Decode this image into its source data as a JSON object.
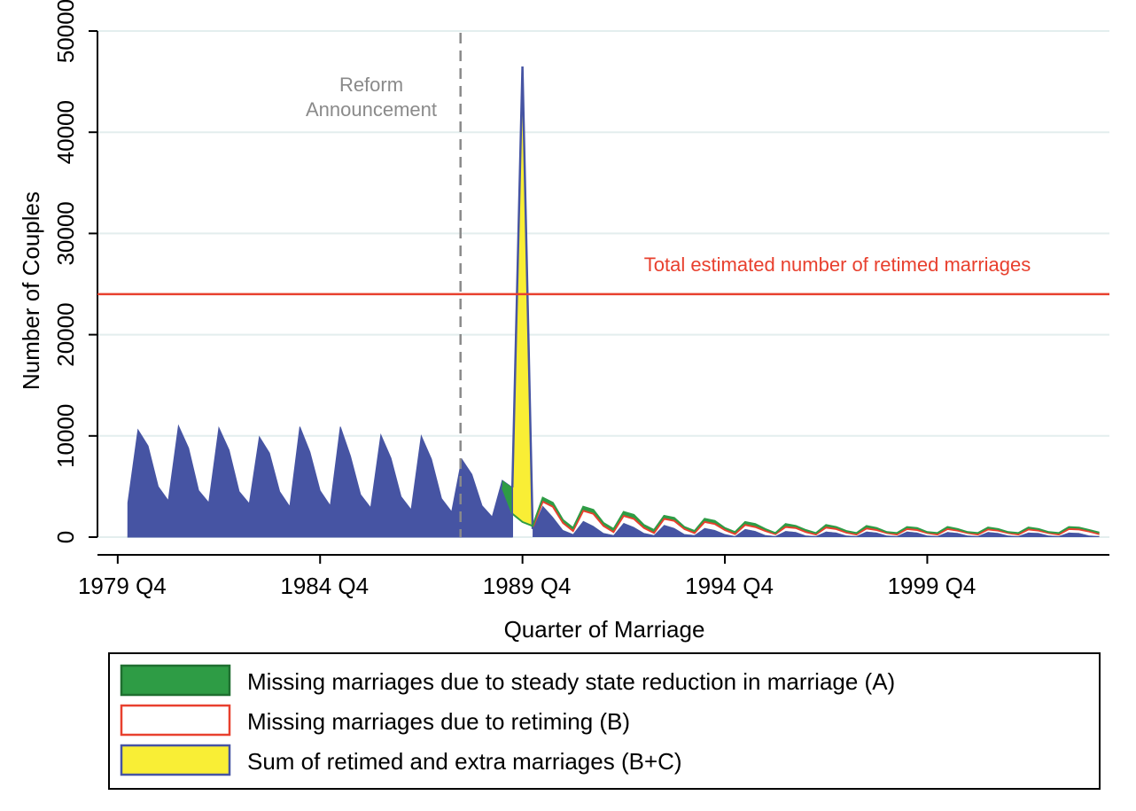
{
  "chart_data": {
    "type": "area",
    "xlabel": "Quarter of Marriage",
    "ylabel": "Number of Couples",
    "x_range": [
      "1979 Q2",
      "2004 Q2"
    ],
    "ylim": [
      0,
      50000
    ],
    "x_ticks": [
      "1979 Q4",
      "1984 Q4",
      "1989 Q4",
      "1994 Q4",
      "1999 Q4"
    ],
    "y_ticks": [
      "0",
      "10000",
      "20000",
      "30000",
      "40000",
      "50000"
    ],
    "grid": true,
    "colors": {
      "observed": "#4654a3",
      "missing_steady_state": "#2e9c45",
      "missing_retiming": "#e8402e",
      "retimed_extra": "#f9ee35",
      "reference_line": "#e8402e",
      "announcement_line": "#8a8a8a",
      "grid": "#e3eeee"
    },
    "annotations": [
      {
        "text_lines": [
          "Reform",
          "Announcement"
        ],
        "x": "1988 Q1",
        "type": "vertical-dashed-line"
      },
      {
        "text": "Total estimated number of retimed marriages",
        "y": 24000,
        "type": "horizontal-line"
      }
    ],
    "legend": {
      "placement": "bottom",
      "entries": [
        {
          "label": "Missing marriages due to steady state reduction in marriage (A)",
          "key": "missing_steady_state"
        },
        {
          "label": "Missing marriages due to retiming (B)",
          "key": "missing_retiming"
        },
        {
          "label": "Sum of retimed and extra marriages (B+C)",
          "key": "retimed_extra"
        }
      ]
    },
    "series": [
      {
        "key": "observed",
        "x": [
          "1980 Q1",
          "1980 Q2",
          "1980 Q3",
          "1980 Q4",
          "1981 Q1",
          "1981 Q2",
          "1981 Q3",
          "1981 Q4",
          "1982 Q1",
          "1982 Q2",
          "1982 Q3",
          "1982 Q4",
          "1983 Q1",
          "1983 Q2",
          "1983 Q3",
          "1983 Q4",
          "1984 Q1",
          "1984 Q2",
          "1984 Q3",
          "1984 Q4",
          "1985 Q1",
          "1985 Q2",
          "1985 Q3",
          "1985 Q4",
          "1986 Q1",
          "1986 Q2",
          "1986 Q3",
          "1986 Q4",
          "1987 Q1",
          "1987 Q2",
          "1987 Q3",
          "1987 Q4",
          "1988 Q1",
          "1988 Q2",
          "1988 Q3",
          "1988 Q4",
          "1989 Q1",
          "1989 Q2",
          "1989 Q3",
          "1989 Q4",
          "1990 Q1",
          "1990 Q2",
          "1990 Q3",
          "1990 Q4",
          "1991 Q1",
          "1991 Q2",
          "1991 Q3",
          "1991 Q4",
          "1992 Q1",
          "1992 Q2",
          "1992 Q3",
          "1992 Q4",
          "1993 Q1",
          "1993 Q2",
          "1993 Q3",
          "1993 Q4",
          "1994 Q1",
          "1994 Q2",
          "1994 Q3",
          "1994 Q4",
          "1995 Q1",
          "1995 Q2",
          "1995 Q3",
          "1995 Q4",
          "1996 Q1",
          "1996 Q2",
          "1996 Q3",
          "1996 Q4",
          "1997 Q1",
          "1997 Q2",
          "1997 Q3",
          "1997 Q4",
          "1998 Q1",
          "1998 Q2",
          "1998 Q3",
          "1998 Q4",
          "1999 Q1",
          "1999 Q2",
          "1999 Q3",
          "1999 Q4",
          "2000 Q1",
          "2000 Q2",
          "2000 Q3",
          "2000 Q4",
          "2001 Q1",
          "2001 Q2",
          "2001 Q3",
          "2001 Q4",
          "2002 Q1",
          "2002 Q2",
          "2002 Q3",
          "2002 Q4",
          "2003 Q1",
          "2003 Q2",
          "2003 Q3",
          "2003 Q4",
          "2004 Q1"
        ],
        "values": [
          3400,
          10600,
          9000,
          5000,
          3600,
          11000,
          8800,
          4600,
          3400,
          10800,
          8600,
          4500,
          3300,
          9900,
          8300,
          4500,
          3000,
          10900,
          8400,
          4600,
          3100,
          10900,
          8000,
          4200,
          2900,
          10100,
          7800,
          4000,
          2700,
          10000,
          7700,
          3800,
          2500,
          7700,
          6200,
          3100,
          2000,
          5600,
          4900,
          46500,
          800,
          3100,
          2000,
          700,
          300,
          1600,
          1100,
          400,
          200,
          1400,
          1000,
          400,
          200,
          1200,
          900,
          300,
          200,
          900,
          700,
          300,
          100,
          800,
          600,
          200,
          100,
          600,
          500,
          150,
          100,
          550,
          450,
          150,
          100,
          550,
          450,
          150,
          100,
          550,
          450,
          150,
          100,
          500,
          400,
          150,
          100,
          500,
          400,
          150,
          100,
          450,
          400,
          150,
          100,
          450,
          400,
          150,
          100
        ]
      },
      {
        "key": "upper_envelope",
        "x": [
          "1989 Q2",
          "1989 Q3",
          "1989 Q4",
          "1990 Q1",
          "1990 Q2",
          "1990 Q3",
          "1990 Q4",
          "1991 Q1",
          "1991 Q2",
          "1991 Q3",
          "1991 Q4",
          "1992 Q1",
          "1992 Q2",
          "1992 Q3",
          "1992 Q4",
          "1993 Q1",
          "1993 Q2",
          "1993 Q3",
          "1993 Q4",
          "1994 Q1",
          "1994 Q2",
          "1994 Q3",
          "1994 Q4",
          "1995 Q1",
          "1995 Q2",
          "1995 Q3",
          "1995 Q4",
          "1996 Q1",
          "1996 Q2",
          "1996 Q3",
          "1996 Q4",
          "1997 Q1",
          "1997 Q2",
          "1997 Q3",
          "1997 Q4",
          "1998 Q1",
          "1998 Q2",
          "1998 Q3",
          "1998 Q4",
          "1999 Q1",
          "1999 Q2",
          "1999 Q3",
          "1999 Q4",
          "2000 Q1",
          "2000 Q2",
          "2000 Q3",
          "2000 Q4",
          "2001 Q1",
          "2001 Q2",
          "2001 Q3",
          "2001 Q4",
          "2002 Q1",
          "2002 Q2",
          "2002 Q3",
          "2002 Q4",
          "2003 Q1",
          "2003 Q2",
          "2003 Q3",
          "2003 Q4",
          "2004 Q1"
        ],
        "values": [
          4900,
          2300,
          1500,
          1100,
          3900,
          3400,
          1700,
          900,
          3000,
          2700,
          1400,
          800,
          2500,
          2200,
          1200,
          700,
          2100,
          1900,
          1000,
          600,
          1800,
          1600,
          900,
          500,
          1500,
          1300,
          800,
          400,
          1300,
          1100,
          700,
          400,
          1200,
          1000,
          600,
          400,
          1100,
          900,
          500,
          400,
          1000,
          900,
          500,
          400,
          1000,
          800,
          500,
          400,
          950,
          800,
          500,
          400,
          950,
          800,
          500,
          400,
          1000,
          950,
          700,
          450
        ]
      },
      {
        "key": "missing_retiming_top",
        "x": [
          "1990 Q1",
          "1990 Q2",
          "1990 Q3",
          "1990 Q4",
          "1991 Q1",
          "1991 Q2",
          "1991 Q3",
          "1991 Q4",
          "1992 Q1",
          "1992 Q2",
          "1992 Q3",
          "1992 Q4",
          "1993 Q1",
          "1993 Q2",
          "1993 Q3",
          "1993 Q4",
          "1994 Q1",
          "1994 Q2",
          "1994 Q3",
          "1994 Q4",
          "1995 Q1",
          "1995 Q2",
          "1995 Q3",
          "1995 Q4",
          "1996 Q1",
          "1996 Q2",
          "1996 Q3",
          "1996 Q4",
          "1997 Q1",
          "1997 Q2",
          "1997 Q3",
          "1997 Q4",
          "1998 Q1",
          "1998 Q2",
          "1998 Q3",
          "1998 Q4",
          "1999 Q1",
          "1999 Q2",
          "1999 Q3",
          "1999 Q4",
          "2000 Q1",
          "2000 Q2",
          "2000 Q3",
          "2000 Q4",
          "2001 Q1",
          "2001 Q2",
          "2001 Q3",
          "2001 Q4",
          "2002 Q1",
          "2002 Q2",
          "2002 Q3",
          "2002 Q4",
          "2003 Q1",
          "2003 Q2",
          "2003 Q3",
          "2003 Q4",
          "2004 Q1"
        ],
        "values": [
          900,
          3500,
          3000,
          1400,
          600,
          2600,
          2300,
          1100,
          500,
          2100,
          1800,
          900,
          400,
          1800,
          1600,
          800,
          400,
          1500,
          1300,
          700,
          300,
          1200,
          1000,
          600,
          300,
          1000,
          900,
          500,
          250,
          950,
          800,
          450,
          250,
          850,
          700,
          400,
          250,
          800,
          700,
          400,
          250,
          800,
          650,
          400,
          250,
          750,
          650,
          400,
          250,
          750,
          650,
          400,
          250,
          800,
          750,
          550,
          300
        ]
      }
    ]
  }
}
